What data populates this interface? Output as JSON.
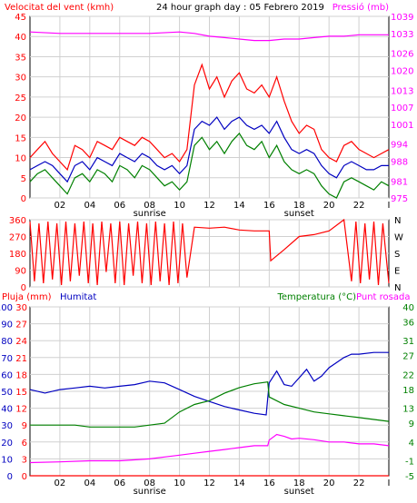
{
  "header": {
    "left_title": "Velocitat del vent (kmh)",
    "center_title": "24 hour graph day : 05 Febrero 2019",
    "right_title": "Pressió (mb)",
    "colors": {
      "left": "#ff0000",
      "center": "#000000",
      "right": "#ff00ff"
    }
  },
  "x_axis": {
    "ticks": [
      {
        "hour": 2,
        "label": "02"
      },
      {
        "hour": 4,
        "label": "04"
      },
      {
        "hour": 6,
        "label": "06"
      },
      {
        "hour": 8,
        "label": "08"
      },
      {
        "hour": 10,
        "label": "10"
      },
      {
        "hour": 12,
        "label": "12"
      },
      {
        "hour": 14,
        "label": "14"
      },
      {
        "hour": 16,
        "label": "16"
      },
      {
        "hour": 18,
        "label": "18"
      },
      {
        "hour": 20,
        "label": "20"
      },
      {
        "hour": 22,
        "label": "22"
      },
      {
        "hour": 24,
        "label": "I"
      }
    ],
    "sunrise": {
      "hour": 8,
      "label": "sunrise"
    },
    "sunset": {
      "hour": 18,
      "label": "sunset"
    }
  },
  "legend_bottom": {
    "pluja": "Pluja (mm)",
    "humitat": "Humitat",
    "temperatura": "Temperatura (°C)",
    "punt_rosada": "Punt rosada",
    "colors": {
      "pluja": "#ff0000",
      "humitat": "#0000c0",
      "temperatura": "#008000",
      "punt_rosada": "#ff00ff"
    }
  },
  "chart_data": [
    {
      "type": "line",
      "name": "wind",
      "x_unit": "hour",
      "xlim": [
        0,
        24
      ],
      "left_axis": {
        "ticks": [
          0,
          5,
          10,
          15,
          20,
          25,
          30,
          35,
          40,
          45
        ],
        "ylim": [
          0,
          45
        ],
        "color": "#ff0000"
      },
      "right_axis": {
        "ticks": [
          975,
          981,
          988,
          994,
          1001,
          1007,
          1013,
          1020,
          1026,
          1033,
          1039
        ],
        "ylim": [
          975,
          1039
        ],
        "color": "#ff00ff"
      },
      "series": [
        {
          "key": "gust",
          "color": "#ff0000",
          "axis": "left",
          "x": [
            0,
            0.5,
            1,
            1.5,
            2,
            2.5,
            3,
            3.5,
            4,
            4.5,
            5,
            5.5,
            6,
            6.5,
            7,
            7.5,
            8,
            8.5,
            9,
            9.5,
            10,
            10.5,
            11,
            11.5,
            12,
            12.5,
            13,
            13.5,
            14,
            14.5,
            15,
            15.5,
            16,
            16.5,
            17,
            17.5,
            18,
            18.5,
            19,
            19.5,
            20,
            20.5,
            21,
            21.5,
            22,
            22.5,
            23,
            23.5,
            24
          ],
          "values": [
            10,
            12,
            14,
            11,
            9,
            7,
            13,
            12,
            10,
            14,
            13,
            12,
            15,
            14,
            13,
            15,
            14,
            12,
            10,
            11,
            9,
            12,
            28,
            33,
            27,
            30,
            25,
            29,
            31,
            27,
            26,
            28,
            25,
            30,
            24,
            19,
            16,
            18,
            17,
            12,
            10,
            9,
            13,
            14,
            12,
            11,
            10,
            11,
            12
          ]
        },
        {
          "key": "average",
          "color": "#0000c0",
          "axis": "left",
          "x": [
            0,
            0.5,
            1,
            1.5,
            2,
            2.5,
            3,
            3.5,
            4,
            4.5,
            5,
            5.5,
            6,
            6.5,
            7,
            7.5,
            8,
            8.5,
            9,
            9.5,
            10,
            10.5,
            11,
            11.5,
            12,
            12.5,
            13,
            13.5,
            14,
            14.5,
            15,
            15.5,
            16,
            16.5,
            17,
            17.5,
            18,
            18.5,
            19,
            19.5,
            20,
            20.5,
            21,
            21.5,
            22,
            22.5,
            23,
            23.5,
            24
          ],
          "values": [
            7,
            8,
            9,
            8,
            6,
            4,
            8,
            9,
            7,
            10,
            9,
            8,
            11,
            10,
            9,
            11,
            10,
            8,
            7,
            8,
            6,
            8,
            17,
            19,
            18,
            20,
            17,
            19,
            20,
            18,
            17,
            18,
            16,
            19,
            15,
            12,
            11,
            12,
            11,
            8,
            6,
            5,
            8,
            9,
            8,
            7,
            7,
            8,
            8
          ]
        },
        {
          "key": "speed",
          "color": "#008000",
          "axis": "left",
          "x": [
            0,
            0.5,
            1,
            1.5,
            2,
            2.5,
            3,
            3.5,
            4,
            4.5,
            5,
            5.5,
            6,
            6.5,
            7,
            7.5,
            8,
            8.5,
            9,
            9.5,
            10,
            10.5,
            11,
            11.5,
            12,
            12.5,
            13,
            13.5,
            14,
            14.5,
            15,
            15.5,
            16,
            16.5,
            17,
            17.5,
            18,
            18.5,
            19,
            19.5,
            20,
            20.5,
            21,
            21.5,
            22,
            22.5,
            23,
            23.5,
            24
          ],
          "values": [
            4,
            6,
            7,
            5,
            3,
            1,
            5,
            6,
            4,
            7,
            6,
            4,
            8,
            7,
            5,
            8,
            7,
            5,
            3,
            4,
            2,
            4,
            13,
            15,
            12,
            14,
            11,
            14,
            16,
            13,
            12,
            14,
            10,
            13,
            9,
            7,
            6,
            7,
            6,
            3,
            1,
            0,
            4,
            5,
            4,
            3,
            2,
            4,
            3
          ]
        },
        {
          "key": "pressure",
          "color": "#ff00ff",
          "axis": "right",
          "x": [
            0,
            2,
            4,
            6,
            8,
            10,
            11,
            12,
            13,
            14,
            15,
            16,
            17,
            18,
            19,
            20,
            21,
            22,
            23,
            24
          ],
          "values": [
            1033.5,
            1033,
            1033,
            1033,
            1033,
            1033.5,
            1033,
            1032,
            1031.5,
            1031,
            1030.5,
            1030.5,
            1031,
            1031,
            1031.5,
            1032,
            1032,
            1032.5,
            1032.5,
            1032.5
          ]
        }
      ]
    },
    {
      "type": "line",
      "name": "wind_direction",
      "x_unit": "hour",
      "xlim": [
        0,
        24
      ],
      "left_axis": {
        "ticks": [
          0,
          90,
          180,
          270,
          360
        ],
        "ylim": [
          0,
          360
        ],
        "color": "#ff0000"
      },
      "right_labels": [
        "N",
        "W",
        "S",
        "E",
        "N"
      ],
      "series": [
        {
          "key": "direction",
          "color": "#ff0000",
          "x": [
            0,
            0.3,
            0.6,
            0.9,
            1.2,
            1.5,
            1.8,
            2.1,
            2.4,
            2.7,
            3,
            3.3,
            3.6,
            3.9,
            4.2,
            4.5,
            4.8,
            5.1,
            5.4,
            5.7,
            6,
            6.3,
            6.6,
            6.9,
            7.2,
            7.5,
            7.8,
            8.1,
            8.4,
            8.7,
            9,
            9.3,
            9.6,
            9.9,
            10.2,
            10.5,
            11,
            12,
            13,
            14,
            15,
            16,
            16.1,
            17,
            18,
            19,
            20,
            21,
            21.5,
            21.8,
            22.1,
            22.4,
            22.7,
            23,
            23.3,
            23.6,
            24
          ],
          "values": [
            350,
            30,
            340,
            20,
            350,
            40,
            340,
            10,
            350,
            30,
            340,
            60,
            350,
            20,
            340,
            10,
            350,
            80,
            340,
            20,
            350,
            10,
            340,
            60,
            350,
            20,
            340,
            10,
            350,
            30,
            340,
            10,
            350,
            20,
            340,
            50,
            320,
            315,
            320,
            305,
            300,
            300,
            140,
            200,
            270,
            280,
            300,
            360,
            30,
            350,
            20,
            340,
            40,
            350,
            10,
            340,
            20
          ]
        }
      ]
    },
    {
      "type": "line",
      "name": "humidity_temperature",
      "x_unit": "hour",
      "xlim": [
        0,
        24
      ],
      "axes": {
        "pluja": {
          "ticks": [
            0,
            3,
            6,
            9,
            12,
            15,
            18,
            21,
            24,
            27,
            30
          ],
          "ylim": [
            0,
            30
          ],
          "color": "#ff0000"
        },
        "humitat": {
          "ticks": [
            0,
            10,
            20,
            30,
            40,
            50,
            60,
            70,
            80,
            90,
            100
          ],
          "ylim": [
            0,
            100
          ],
          "color": "#0000c0"
        },
        "temperatura": {
          "ticks": [
            -5,
            -1,
            4,
            9,
            13,
            18,
            22,
            27,
            31,
            36,
            40
          ],
          "ylim": [
            -5,
            40
          ],
          "color": "#008000"
        }
      },
      "series": [
        {
          "key": "rain",
          "color": "#ff0000",
          "axis": "pluja",
          "x": [
            0,
            24
          ],
          "values": [
            0,
            0
          ]
        },
        {
          "key": "humidity",
          "color": "#0000c0",
          "axis": "humitat",
          "x": [
            0,
            1,
            2,
            3,
            4,
            5,
            6,
            7,
            8,
            9,
            10,
            11,
            12,
            13,
            14,
            15,
            15.8,
            16,
            16.5,
            17,
            17.5,
            18,
            18.5,
            19,
            19.5,
            20,
            20.5,
            21,
            21.5,
            22,
            23,
            24
          ],
          "values": [
            51,
            49,
            51,
            52,
            53,
            52,
            53,
            54,
            56,
            55,
            51,
            47,
            44,
            41,
            39,
            37,
            36,
            55,
            62,
            54,
            53,
            58,
            63,
            56,
            59,
            64,
            67,
            70,
            72,
            72,
            73,
            73
          ]
        },
        {
          "key": "temperature",
          "color": "#008000",
          "axis": "temperatura",
          "x": [
            0,
            1,
            2,
            3,
            4,
            5,
            6,
            7,
            8,
            9,
            10,
            11,
            12,
            13,
            14,
            15,
            15.9,
            16,
            17,
            18,
            19,
            20,
            21,
            22,
            23,
            24
          ],
          "values": [
            8.5,
            8.5,
            8.5,
            8.5,
            8,
            8,
            8,
            8,
            8.5,
            9,
            12,
            14,
            15,
            17,
            18.5,
            19.5,
            20,
            16,
            14,
            13,
            12,
            11.5,
            11,
            10.5,
            10,
            9.5
          ]
        },
        {
          "key": "dew_point",
          "color": "#ff00ff",
          "axis": "temperatura",
          "x": [
            0,
            2,
            4,
            6,
            8,
            9,
            10,
            11,
            12,
            13,
            14,
            15,
            15.9,
            16,
            16.5,
            17,
            17.5,
            18,
            19,
            20,
            21,
            22,
            23,
            24
          ],
          "values": [
            -1.5,
            -1.3,
            -1,
            -1,
            -0.5,
            0,
            0.5,
            1,
            1.5,
            2,
            2.5,
            3,
            3,
            4.5,
            6,
            5.5,
            4.8,
            5,
            4.6,
            4,
            4,
            3.5,
            3.5,
            3
          ]
        }
      ]
    }
  ]
}
